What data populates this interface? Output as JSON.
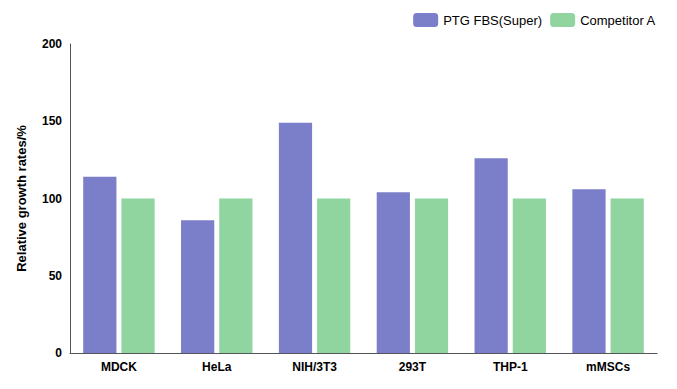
{
  "chart_data": {
    "type": "bar",
    "categories": [
      "MDCK",
      "HeLa",
      "NIH/3T3",
      "293T",
      "THP-1",
      "mMSCs"
    ],
    "series": [
      {
        "name": "PTG FBS(Super)",
        "color": "#7B7EC8",
        "values": [
          114,
          86,
          149,
          104,
          126,
          106
        ]
      },
      {
        "name": "Competitor A",
        "color": "#90D4A0",
        "values": [
          100,
          100,
          100,
          100,
          100,
          100
        ]
      }
    ],
    "ylabel": "Relative growth rates/%",
    "ylim": [
      0,
      200
    ],
    "yticks": [
      0,
      50,
      100,
      150,
      200
    ],
    "grid": false,
    "legend": "upper right"
  }
}
